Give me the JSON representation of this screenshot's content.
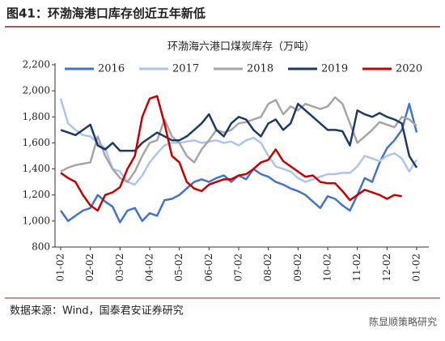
{
  "header": "图41：环渤海港口库存创近五年新低",
  "source": "数据来源：Wind，国泰君安证券研究",
  "watermark": "陈显顺策略研究",
  "chart_data": {
    "type": "line",
    "title": "环渤海六港口煤炭库存（万吨）",
    "categories": [
      "01-02",
      null,
      null,
      null,
      "02-02",
      null,
      null,
      null,
      "03-02",
      null,
      null,
      null,
      "04-02",
      null,
      null,
      null,
      "05-02",
      null,
      null,
      null,
      "06-02",
      null,
      null,
      null,
      "07-02",
      null,
      null,
      null,
      "08-02",
      null,
      null,
      null,
      "09-02",
      null,
      null,
      null,
      "10-02",
      null,
      null,
      null,
      "11-02",
      null,
      null,
      null,
      "12-02",
      null,
      null,
      null,
      "01-02"
    ],
    "ylim": [
      800,
      2200
    ],
    "yticks": [
      800,
      {
        "value": 1000,
        "label": "1,000"
      },
      {
        "value": 1200,
        "label": "1,200"
      },
      {
        "value": 1400,
        "label": "1,400"
      },
      {
        "value": 1600,
        "label": "1,600"
      },
      {
        "value": 1800,
        "label": "1,800"
      },
      {
        "value": 2000,
        "label": "2,000"
      },
      {
        "value": 2200,
        "label": "2,200"
      }
    ],
    "grid": false,
    "legend": "top",
    "series": [
      {
        "name": "2016",
        "color": "#4472c4",
        "values": [
          1080,
          1000,
          1040,
          1080,
          1100,
          1200,
          1150,
          1110,
          990,
          1080,
          1100,
          1000,
          1060,
          1040,
          1160,
          1170,
          1200,
          1250,
          1300,
          1320,
          1300,
          1330,
          1350,
          1300,
          1350,
          1320,
          1400,
          1360,
          1340,
          1300,
          1280,
          1250,
          1230,
          1200,
          1150,
          1100,
          1190,
          1170,
          1120,
          1080,
          1200,
          1330,
          1300,
          1450,
          1560,
          1620,
          1700,
          1900,
          1680
        ]
      },
      {
        "name": "2017",
        "color": "#adc6e8",
        "values": [
          1940,
          1750,
          1700,
          1660,
          1650,
          1600,
          1560,
          1400,
          1380,
          1300,
          1280,
          1350,
          1450,
          1520,
          1580,
          1600,
          1600,
          1610,
          1620,
          1600,
          1610,
          1620,
          1600,
          1610,
          1580,
          1620,
          1640,
          1600,
          1500,
          1420,
          1400,
          1380,
          1330,
          1300,
          1320,
          1340,
          1360,
          1360,
          1370,
          1370,
          1420,
          1500,
          1480,
          1460,
          1500,
          1520,
          1480,
          1380,
          1470
        ]
      },
      {
        "name": "2018",
        "color": "#a5a5a5",
        "values": [
          1380,
          1410,
          1430,
          1440,
          1450,
          1650,
          1500,
          1400,
          1330,
          1300,
          1380,
          1500,
          1600,
          1620,
          1780,
          1650,
          1600,
          1500,
          1450,
          1550,
          1620,
          1700,
          1680,
          1700,
          1750,
          1760,
          1780,
          1800,
          1900,
          1930,
          1820,
          1880,
          1850,
          1900,
          1880,
          1860,
          1880,
          1950,
          1900,
          1750,
          1600,
          1650,
          1700,
          1760,
          1740,
          1720,
          1800,
          1780,
          1730
        ]
      },
      {
        "name": "2019",
        "color": "#1f3864",
        "values": [
          1700,
          1680,
          1660,
          1700,
          1740,
          1580,
          1550,
          1600,
          1540,
          1540,
          1540,
          1600,
          1640,
          1680,
          1650,
          1620,
          1620,
          1650,
          1700,
          1750,
          1820,
          1700,
          1650,
          1750,
          1800,
          1780,
          1700,
          1650,
          1750,
          1780,
          1700,
          1750,
          1900,
          1850,
          1800,
          1750,
          1700,
          1700,
          1690,
          1580,
          1850,
          1820,
          1800,
          1830,
          1800,
          1780,
          1750,
          1500,
          1410
        ]
      },
      {
        "name": "2020",
        "color": "#c00000",
        "values": [
          1370,
          1330,
          1300,
          1200,
          1120,
          1080,
          1200,
          1220,
          1260,
          1400,
          1500,
          1800,
          1940,
          1960,
          1750,
          1500,
          1450,
          1300,
          1250,
          1230,
          1280,
          1300,
          1320,
          1320,
          1350,
          1360,
          1400,
          1450,
          1470,
          1550,
          1460,
          1420,
          1380,
          1340,
          1350,
          1300,
          1290,
          1290,
          1230,
          1160,
          1200,
          1240,
          1220,
          1200,
          1170,
          1200,
          1190,
          null,
          null
        ]
      }
    ]
  }
}
